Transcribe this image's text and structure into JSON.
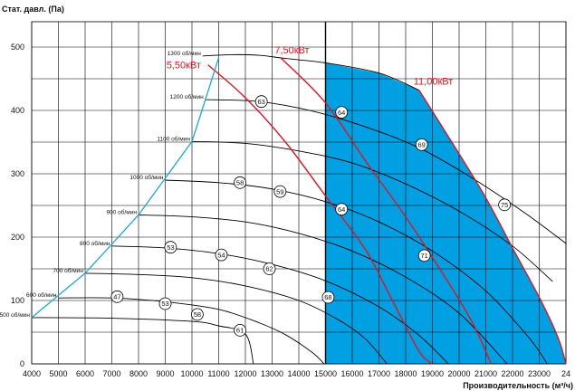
{
  "chart_data": {
    "type": "line",
    "ylabel": "Стат. давл. (Па)",
    "xlabel": "Производительность (м³/ч)",
    "xlim": [
      4000,
      24000
    ],
    "ylim": [
      0,
      540
    ],
    "x_ticks": [
      "4000",
      "5000",
      "6000",
      "7000",
      "8000",
      "9000",
      "10000",
      "11000",
      "12000",
      "13000",
      "14000",
      "15000",
      "16000",
      "17000",
      "18000",
      "19000",
      "20000",
      "21000",
      "22000",
      "23000",
      "24"
    ],
    "y_ticks": [
      "0",
      "100",
      "200",
      "300",
      "400",
      "500"
    ],
    "recommended_zone": {
      "x_from": 15000,
      "color": "#00a0e3"
    },
    "speed_curves": [
      {
        "name": "500 об/мин",
        "points": [
          [
            4000,
            73
          ],
          [
            7000,
            72
          ],
          [
            10000,
            67
          ],
          [
            11000,
            60
          ],
          [
            12000,
            47
          ],
          [
            12300,
            0
          ]
        ]
      },
      {
        "name": "600 об/мин",
        "points": [
          [
            5000,
            104
          ],
          [
            7000,
            104
          ],
          [
            9000,
            98
          ],
          [
            11000,
            86
          ],
          [
            12500,
            65
          ],
          [
            13500,
            46
          ],
          [
            14500,
            18
          ],
          [
            14950,
            0
          ]
        ]
      },
      {
        "name": "700 об/мин",
        "points": [
          [
            6000,
            143
          ],
          [
            8000,
            141
          ],
          [
            10000,
            136
          ],
          [
            12000,
            123
          ],
          [
            14000,
            100
          ],
          [
            15500,
            69
          ],
          [
            16500,
            39
          ],
          [
            17300,
            0
          ]
        ]
      },
      {
        "name": "800 об/мин",
        "points": [
          [
            7000,
            186
          ],
          [
            9000,
            183
          ],
          [
            11000,
            174
          ],
          [
            13000,
            157
          ],
          [
            15000,
            131
          ],
          [
            17000,
            90
          ],
          [
            18500,
            45
          ],
          [
            19600,
            0
          ]
        ]
      },
      {
        "name": "900 об/мин",
        "points": [
          [
            8000,
            235
          ],
          [
            10000,
            232
          ],
          [
            12000,
            224
          ],
          [
            14000,
            206
          ],
          [
            16000,
            178
          ],
          [
            18000,
            137
          ],
          [
            20000,
            80
          ],
          [
            21800,
            0
          ]
        ]
      },
      {
        "name": "1000 об/мин",
        "points": [
          [
            9000,
            290
          ],
          [
            11000,
            286
          ],
          [
            13000,
            276
          ],
          [
            15000,
            256
          ],
          [
            17000,
            224
          ],
          [
            19000,
            178
          ],
          [
            21000,
            115
          ],
          [
            22600,
            42
          ],
          [
            23300,
            0
          ]
        ]
      },
      {
        "name": "1100 об/мин",
        "points": [
          [
            10000,
            351
          ],
          [
            12000,
            348
          ],
          [
            14000,
            336
          ],
          [
            16000,
            317
          ],
          [
            18000,
            284
          ],
          [
            20000,
            241
          ],
          [
            22000,
            186
          ],
          [
            23500,
            130
          ]
        ]
      },
      {
        "name": "1200 об/мин",
        "points": [
          [
            10500,
            417
          ],
          [
            12500,
            414
          ],
          [
            14500,
            399
          ],
          [
            16500,
            374
          ],
          [
            18500,
            341
          ],
          [
            20500,
            293
          ],
          [
            22500,
            237
          ],
          [
            24000,
            190
          ]
        ]
      },
      {
        "name": "1300 об/мин",
        "points": [
          [
            10400,
            486
          ],
          [
            11500,
            488
          ],
          [
            12500,
            487
          ],
          [
            13500,
            482
          ],
          [
            15000,
            475
          ],
          [
            17000,
            459
          ],
          [
            18500,
            432
          ]
        ]
      }
    ],
    "power_curves": [
      {
        "name": "5,50кВт",
        "points": [
          [
            10600,
            472
          ],
          [
            12000,
            420
          ],
          [
            13500,
            350
          ],
          [
            15000,
            265
          ],
          [
            16500,
            180
          ],
          [
            17500,
            100
          ],
          [
            18500,
            20
          ],
          [
            19000,
            0
          ]
        ]
      },
      {
        "name": "7,50кВт",
        "points": [
          [
            13300,
            484
          ],
          [
            15000,
            412
          ],
          [
            16500,
            320
          ],
          [
            18000,
            232
          ],
          [
            19500,
            135
          ],
          [
            20500,
            65
          ],
          [
            21200,
            0
          ]
        ]
      },
      {
        "name": "11,00кВт",
        "points": [
          [
            18500,
            432
          ],
          [
            19800,
            345
          ],
          [
            21000,
            262
          ],
          [
            22000,
            183
          ],
          [
            23000,
            105
          ],
          [
            23700,
            42
          ],
          [
            24000,
            0
          ]
        ]
      }
    ],
    "system_line": [
      [
        4000,
        73
      ],
      [
        6000,
        143
      ],
      [
        8000,
        235
      ],
      [
        10000,
        351
      ],
      [
        10500,
        417
      ],
      [
        11000,
        483
      ]
    ],
    "markers": [
      {
        "label": "47",
        "x": 7200,
        "y": 106
      },
      {
        "label": "53",
        "x": 9000,
        "y": 95
      },
      {
        "label": "58",
        "x": 10200,
        "y": 78
      },
      {
        "label": "61",
        "x": 11800,
        "y": 53
      },
      {
        "label": "53",
        "x": 9200,
        "y": 184
      },
      {
        "label": "54",
        "x": 11100,
        "y": 172
      },
      {
        "label": "62",
        "x": 12900,
        "y": 150
      },
      {
        "label": "68",
        "x": 15100,
        "y": 105
      },
      {
        "label": "58",
        "x": 11800,
        "y": 286
      },
      {
        "label": "59",
        "x": 13300,
        "y": 272
      },
      {
        "label": "64",
        "x": 15600,
        "y": 244
      },
      {
        "label": "71",
        "x": 18700,
        "y": 171
      },
      {
        "label": "63",
        "x": 12600,
        "y": 414
      },
      {
        "label": "64",
        "x": 15600,
        "y": 397
      },
      {
        "label": "69",
        "x": 18600,
        "y": 346
      },
      {
        "label": "75",
        "x": 21700,
        "y": 251
      }
    ]
  }
}
